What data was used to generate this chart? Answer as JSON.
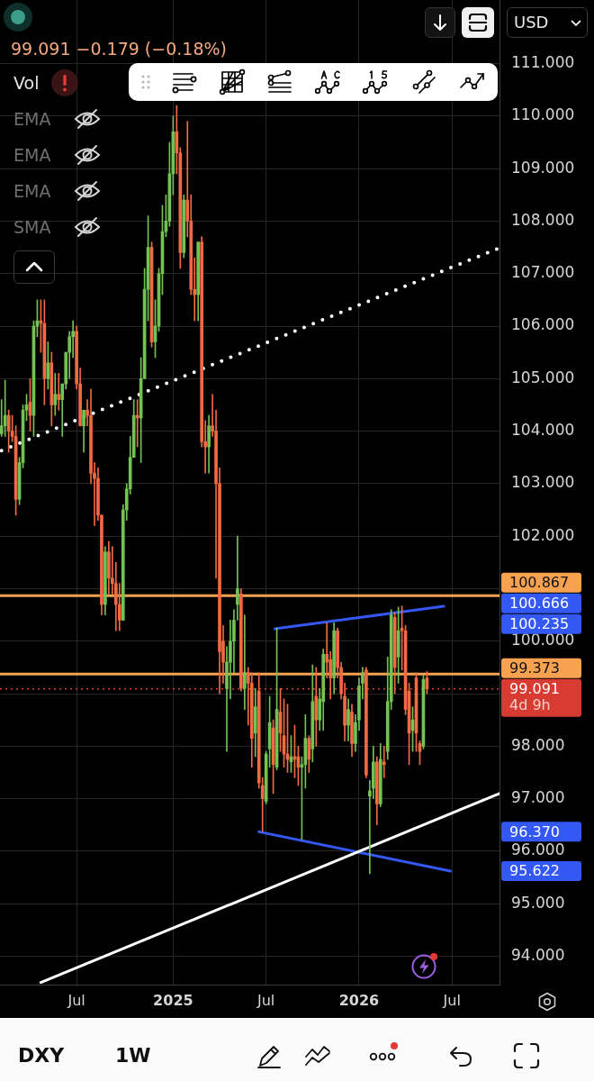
{
  "chart_data": {
    "type": "candlestick",
    "x": [
      "2024-02-05",
      "2024-02-12",
      "2024-02-19",
      "2024-02-26",
      "2024-03-04",
      "2024-03-11",
      "2024-03-18",
      "2024-03-25",
      "2024-04-01",
      "2024-04-08",
      "2024-04-15",
      "2024-04-22",
      "2024-04-29",
      "2024-05-06",
      "2024-05-13",
      "2024-05-20",
      "2024-05-27",
      "2024-06-03",
      "2024-06-10",
      "2024-06-17",
      "2024-06-24",
      "2024-07-01",
      "2024-07-08",
      "2024-07-15",
      "2024-07-22",
      "2024-07-29",
      "2024-08-05",
      "2024-08-12",
      "2024-08-19",
      "2024-08-26",
      "2024-09-02",
      "2024-09-09",
      "2024-09-16",
      "2024-09-23",
      "2024-09-30",
      "2024-10-07",
      "2024-10-14",
      "2024-10-21",
      "2024-10-28",
      "2024-11-04",
      "2024-11-11",
      "2024-11-18",
      "2024-11-25",
      "2024-12-02",
      "2024-12-09",
      "2024-12-16",
      "2024-12-23",
      "2024-12-30",
      "2025-01-06",
      "2025-01-13",
      "2025-01-20",
      "2025-01-27",
      "2025-02-03",
      "2025-02-10",
      "2025-02-17",
      "2025-02-24",
      "2025-03-03",
      "2025-03-10",
      "2025-03-17",
      "2025-03-24",
      "2025-03-31",
      "2025-04-07",
      "2025-04-14",
      "2025-04-21",
      "2025-04-28",
      "2025-05-05",
      "2025-05-12",
      "2025-05-19",
      "2025-05-26",
      "2025-06-02",
      "2025-06-09",
      "2025-06-16",
      "2025-06-23",
      "2025-06-30",
      "2025-07-07",
      "2025-07-14",
      "2025-07-21",
      "2025-07-28",
      "2025-08-04",
      "2025-08-11",
      "2025-08-18",
      "2025-08-25",
      "2025-09-01",
      "2025-09-08",
      "2025-09-15",
      "2025-09-22",
      "2025-09-29",
      "2025-10-06",
      "2025-10-13",
      "2025-10-20",
      "2025-10-27",
      "2025-11-03",
      "2025-11-10",
      "2025-11-17",
      "2025-11-24",
      "2025-12-01",
      "2025-12-08",
      "2025-12-15",
      "2025-12-22",
      "2025-12-29",
      "2026-01-05",
      "2026-01-12",
      "2026-01-19",
      "2026-01-26",
      "2026-02-02",
      "2026-02-09",
      "2026-02-16",
      "2026-02-23",
      "2026-03-02",
      "2026-03-09",
      "2026-03-16",
      "2026-03-23",
      "2026-03-30",
      "2026-04-06",
      "2026-04-13",
      "2026-04-20",
      "2026-04-27",
      "2026-05-04",
      "2026-05-11",
      "2026-05-18"
    ],
    "ohlc": [
      [
        103.95,
        104.6,
        103.9,
        104.1
      ],
      [
        104.1,
        104.97,
        103.9,
        104.3
      ],
      [
        104.3,
        104.4,
        103.6,
        104.0
      ],
      [
        104.0,
        104.3,
        103.8,
        103.9
      ],
      [
        103.9,
        104.1,
        102.4,
        102.7
      ],
      [
        102.7,
        103.5,
        102.6,
        103.4
      ],
      [
        103.4,
        104.5,
        103.3,
        104.4
      ],
      [
        104.4,
        104.7,
        104.2,
        104.5
      ],
      [
        104.55,
        105.0,
        104.0,
        104.3
      ],
      [
        104.3,
        106.1,
        103.9,
        106.0
      ],
      [
        106.0,
        106.5,
        105.8,
        106.1
      ],
      [
        106.1,
        106.5,
        105.5,
        106.05
      ],
      [
        106.05,
        106.5,
        104.5,
        105.0
      ],
      [
        105.0,
        105.7,
        104.8,
        105.3
      ],
      [
        105.3,
        105.5,
        104.1,
        104.5
      ],
      [
        104.5,
        105.1,
        104.3,
        104.7
      ],
      [
        104.7,
        105.1,
        104.4,
        104.6
      ],
      [
        104.6,
        104.9,
        103.9,
        104.9
      ],
      [
        104.9,
        105.5,
        104.8,
        105.5
      ],
      [
        105.5,
        105.9,
        105.0,
        105.8
      ],
      [
        105.8,
        106.1,
        105.4,
        105.9
      ],
      [
        105.9,
        106.0,
        104.8,
        104.9
      ],
      [
        104.9,
        105.2,
        104.1,
        104.1
      ],
      [
        104.1,
        104.4,
        103.6,
        104.4
      ],
      [
        104.4,
        104.6,
        104.1,
        104.3
      ],
      [
        104.3,
        104.8,
        103.0,
        103.2
      ],
      [
        103.2,
        103.4,
        102.2,
        103.1
      ],
      [
        103.1,
        103.3,
        102.3,
        102.4
      ],
      [
        102.4,
        102.4,
        100.5,
        100.7
      ],
      [
        100.7,
        101.8,
        100.5,
        101.7
      ],
      [
        101.7,
        101.9,
        100.9,
        101.2
      ],
      [
        101.2,
        101.8,
        100.9,
        101.1
      ],
      [
        101.1,
        101.5,
        100.2,
        100.7
      ],
      [
        100.7,
        101.1,
        100.2,
        100.4
      ],
      [
        100.4,
        102.6,
        100.4,
        102.5
      ],
      [
        102.5,
        103.0,
        102.3,
        102.9
      ],
      [
        102.9,
        103.9,
        102.8,
        103.5
      ],
      [
        103.5,
        104.6,
        103.5,
        104.3
      ],
      [
        104.3,
        104.6,
        103.7,
        104.25
      ],
      [
        104.25,
        105.4,
        103.4,
        105.0
      ],
      [
        105.0,
        107.1,
        105.0,
        106.7
      ],
      [
        106.7,
        108.1,
        106.1,
        107.5
      ],
      [
        107.5,
        107.6,
        105.6,
        105.7
      ],
      [
        105.7,
        106.5,
        105.4,
        106.0
      ],
      [
        106.0,
        107.1,
        105.9,
        107.0
      ],
      [
        107.0,
        108.3,
        106.6,
        107.8
      ],
      [
        107.8,
        108.5,
        107.7,
        108.0
      ],
      [
        108.0,
        109.5,
        107.9,
        108.9
      ],
      [
        108.9,
        110.0,
        108.5,
        109.7
      ],
      [
        109.7,
        110.2,
        108.9,
        109.3
      ],
      [
        109.3,
        109.4,
        107.1,
        107.4
      ],
      [
        107.4,
        108.5,
        107.3,
        108.4
      ],
      [
        108.4,
        109.9,
        107.7,
        108.0
      ],
      [
        108.0,
        108.5,
        106.6,
        106.7
      ],
      [
        106.7,
        107.3,
        106.1,
        106.6
      ],
      [
        106.6,
        107.6,
        106.1,
        107.6
      ],
      [
        107.6,
        107.7,
        103.7,
        103.8
      ],
      [
        103.8,
        104.2,
        103.2,
        103.7
      ],
      [
        103.7,
        104.3,
        103.2,
        104.1
      ],
      [
        104.1,
        104.7,
        103.9,
        104.0
      ],
      [
        104.0,
        104.4,
        101.2,
        103.0
      ],
      [
        103.0,
        103.3,
        99.0,
        99.8
      ],
      [
        100.0,
        100.3,
        99.2,
        99.6
      ],
      [
        99.1,
        99.9,
        97.9,
        99.6
      ],
      [
        99.6,
        100.4,
        98.9,
        100.0
      ],
      [
        100.0,
        100.6,
        99.4,
        100.4
      ],
      [
        100.7,
        102.0,
        100.4,
        101.0
      ],
      [
        100.9,
        101.0,
        99.05,
        99.1
      ],
      [
        99.1,
        100.5,
        98.7,
        99.4
      ],
      [
        99.4,
        99.5,
        98.4,
        99.2
      ],
      [
        99.2,
        99.4,
        97.6,
        98.15
      ],
      [
        98.25,
        99.1,
        97.8,
        98.75
      ],
      [
        99.05,
        99.4,
        97.2,
        97.3
      ],
      [
        97.25,
        97.4,
        96.37,
        97.0
      ],
      [
        96.95,
        97.9,
        96.9,
        97.85
      ],
      [
        97.95,
        98.95,
        97.6,
        98.45
      ],
      [
        98.35,
        98.5,
        97.1,
        97.65
      ],
      [
        97.6,
        100.25,
        97.55,
        98.7
      ],
      [
        98.65,
        99.1,
        97.9,
        98.25
      ],
      [
        98.2,
        98.9,
        97.6,
        97.85
      ],
      [
        97.85,
        98.8,
        97.5,
        97.75
      ],
      [
        97.7,
        98.2,
        97.5,
        97.8
      ],
      [
        97.8,
        98.4,
        97.4,
        97.75
      ],
      [
        97.8,
        98.0,
        97.25,
        97.6
      ],
      [
        97.6,
        97.8,
        96.22,
        97.65
      ],
      [
        97.65,
        98.6,
        97.2,
        98.15
      ],
      [
        98.15,
        98.2,
        97.5,
        97.75
      ],
      [
        97.95,
        99.55,
        97.7,
        98.85
      ],
      [
        98.95,
        99.5,
        98.0,
        98.5
      ],
      [
        98.5,
        99.1,
        98.3,
        98.9
      ],
      [
        98.85,
        99.85,
        98.3,
        99.75
      ],
      [
        99.75,
        100.35,
        99.3,
        99.6
      ],
      [
        99.65,
        99.8,
        98.9,
        99.3
      ],
      [
        99.3,
        100.35,
        99.0,
        100.2
      ],
      [
        100.2,
        100.25,
        99.3,
        99.5
      ],
      [
        99.5,
        99.6,
        98.9,
        99.0
      ],
      [
        98.95,
        99.2,
        98.1,
        98.4
      ],
      [
        98.4,
        98.9,
        98.1,
        98.7
      ],
      [
        98.65,
        98.8,
        97.8,
        98.05
      ],
      [
        98.05,
        98.6,
        97.9,
        98.45
      ],
      [
        98.5,
        99.3,
        98.3,
        99.15
      ],
      [
        99.2,
        99.5,
        98.9,
        99.4
      ],
      [
        99.45,
        99.5,
        97.4,
        97.45
      ],
      [
        97.05,
        97.35,
        95.57,
        97.15
      ],
      [
        97.2,
        98.0,
        97.0,
        97.7
      ],
      [
        97.7,
        97.8,
        96.5,
        96.9
      ],
      [
        96.9,
        98.05,
        96.85,
        97.75
      ],
      [
        97.7,
        98.0,
        97.4,
        97.65
      ],
      [
        97.9,
        99.7,
        97.75,
        98.85
      ],
      [
        98.85,
        100.6,
        98.7,
        100.5
      ],
      [
        100.45,
        100.55,
        99.0,
        99.5
      ],
      [
        99.7,
        100.65,
        99.2,
        100.2
      ],
      [
        100.25,
        100.67,
        99.45,
        100.2
      ],
      [
        100.2,
        100.3,
        98.6,
        98.7
      ],
      [
        99.05,
        99.2,
        97.65,
        98.25
      ],
      [
        98.3,
        98.75,
        97.9,
        98.5
      ],
      [
        99.3,
        99.4,
        97.9,
        98.25
      ],
      [
        98.05,
        98.1,
        97.65,
        97.9
      ],
      [
        98.0,
        99.35,
        97.95,
        99.27
      ],
      [
        99.3,
        99.42,
        99.0,
        99.091
      ]
    ],
    "colors": [
      "#74c154",
      "#74c154",
      "#f06a43",
      "#f06a43",
      "#f06a43",
      "#74c154",
      "#74c154",
      "#74c154",
      "#f06a43",
      "#74c154",
      "#74c154",
      "#f06a43",
      "#f06a43",
      "#74c154",
      "#f06a43",
      "#74c154",
      "#f06a43",
      "#74c154",
      "#74c154",
      "#74c154",
      "#74c154",
      "#f06a43",
      "#f06a43",
      "#74c154",
      "#f06a43",
      "#f06a43",
      "#f06a43",
      "#f06a43",
      "#f06a43",
      "#74c154",
      "#f06a43",
      "#f06a43",
      "#f06a43",
      "#f06a43",
      "#74c154",
      "#74c154",
      "#74c154",
      "#74c154",
      "#f06a43",
      "#74c154",
      "#74c154",
      "#74c154",
      "#f06a43",
      "#74c154",
      "#74c154",
      "#74c154",
      "#74c154",
      "#74c154",
      "#74c154",
      "#f06a43",
      "#f06a43",
      "#74c154",
      "#f06a43",
      "#f06a43",
      "#f06a43",
      "#74c154",
      "#f06a43",
      "#f06a43",
      "#74c154",
      "#f06a43",
      "#f06a43",
      "#f06a43",
      "#f06a43",
      "#74c154",
      "#74c154",
      "#74c154",
      "#74c154",
      "#f06a43",
      "#74c154",
      "#f06a43",
      "#f06a43",
      "#74c154",
      "#f06a43",
      "#f06a43",
      "#74c154",
      "#74c154",
      "#f06a43",
      "#74c154",
      "#f06a43",
      "#f06a43",
      "#f06a43",
      "#74c154",
      "#f06a43",
      "#f06a43",
      "#74c154",
      "#74c154",
      "#f06a43",
      "#74c154",
      "#f06a43",
      "#74c154",
      "#74c154",
      "#f06a43",
      "#f06a43",
      "#74c154",
      "#f06a43",
      "#f06a43",
      "#f06a43",
      "#74c154",
      "#f06a43",
      "#74c154",
      "#74c154",
      "#74c154",
      "#f06a43",
      "#74c154",
      "#74c154",
      "#f06a43",
      "#74c154",
      "#f06a43",
      "#74c154",
      "#74c154",
      "#f06a43",
      "#74c154",
      "#f06a43",
      "#f06a43",
      "#f06a43",
      "#74c154",
      "#f06a43",
      "#f06a43",
      "#74c154",
      "#f06a43"
    ],
    "series": [
      {
        "type": "line",
        "x": [
          "2024-04-22",
          "2026-10-07"
        ],
        "values": [
          93.5,
          97.1
        ],
        "color": "#ffffff"
      },
      {
        "type": "line",
        "x": [
          "2024-02-05",
          "2026-10-07"
        ],
        "values": [
          103.63,
          107.49
        ],
        "color": "#ffffff",
        "line_style": "dotted"
      },
      {
        "type": "line",
        "x": [
          "2025-07-24",
          "2026-06-20"
        ],
        "values": [
          100.235,
          100.666
        ],
        "color": "#3358f4"
      },
      {
        "type": "line",
        "x": [
          "2025-06-23",
          "2026-07-03"
        ],
        "values": [
          96.37,
          95.622
        ],
        "color": "#3358f4"
      }
    ],
    "ref_lines": [
      {
        "axis": "y",
        "value": 100.867,
        "label": "100.867",
        "color": "#f7a250"
      },
      {
        "axis": "y",
        "value": 99.373,
        "label": "99.373",
        "color": "#f7a250"
      },
      {
        "axis": "y",
        "value": 99.091,
        "label": "99.091",
        "color": "#d83b32",
        "line_style": "dotted"
      }
    ],
    "annotations": [
      "99.091 −0.179 (−0.18%)",
      "Vol",
      "EMA",
      "EMA",
      "EMA",
      "SMA",
      "USD",
      "4d 9h",
      "DXY",
      "1W",
      "100.666",
      "100.235",
      "96.370",
      "95.622"
    ],
    "xlim": [
      "2024-02-02",
      "2026-10-07"
    ],
    "xticks": [
      {
        "value": "2024-07-01",
        "label": "Jul"
      },
      {
        "value": "2025-01-06",
        "label": "2025"
      },
      {
        "value": "2025-07-07",
        "label": "Jul"
      },
      {
        "value": "2026-01-05",
        "label": "2026"
      },
      {
        "value": "2026-07-06",
        "label": "Jul"
      }
    ],
    "ylim": [
      93.46,
      112.21
    ],
    "yticks": [
      {
        "value": 94,
        "label": "94.000"
      },
      {
        "value": 95,
        "label": "95.000"
      },
      {
        "value": 96,
        "label": "96.000"
      },
      {
        "value": 97,
        "label": "97.000"
      },
      {
        "value": 98,
        "label": "98.000"
      },
      {
        "value": 99,
        "label": null
      },
      {
        "value": 100,
        "label": "100.000"
      },
      {
        "value": 101,
        "label": null
      },
      {
        "value": 102,
        "label": "102.000"
      },
      {
        "value": 103,
        "label": "103.000"
      },
      {
        "value": 104,
        "label": "104.000"
      },
      {
        "value": 105,
        "label": "105.000"
      },
      {
        "value": 106,
        "label": "106.000"
      },
      {
        "value": 107,
        "label": "107.000"
      },
      {
        "value": 108,
        "label": "108.000"
      },
      {
        "value": 109,
        "label": "109.000"
      },
      {
        "value": 110,
        "label": "110.000"
      },
      {
        "value": 111,
        "label": "111.000"
      }
    ],
    "grid": true
  }
}
